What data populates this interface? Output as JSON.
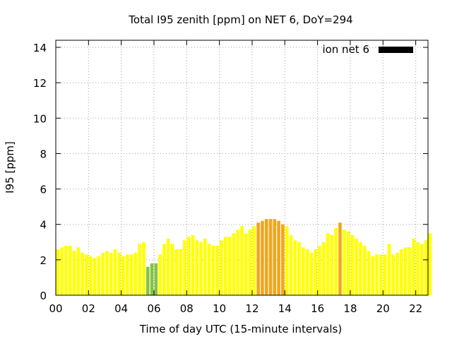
{
  "chart_data": {
    "type": "bar",
    "title": "Total I95 zenith [ppm] on NET 6, DoY=294",
    "xlabel": "Time of day UTC (15-minute intervals)",
    "ylabel": "I95 [ppm]",
    "xlim": [
      0,
      22.75
    ],
    "ylim": [
      0,
      14.4
    ],
    "grid": true,
    "legend_position": "top-right",
    "x_ticks": [
      {
        "value": 0,
        "label": "00"
      },
      {
        "value": 2,
        "label": "02"
      },
      {
        "value": 4,
        "label": "04"
      },
      {
        "value": 6,
        "label": "06"
      },
      {
        "value": 8,
        "label": "08"
      },
      {
        "value": 10,
        "label": "10"
      },
      {
        "value": 12,
        "label": "12"
      },
      {
        "value": 14,
        "label": "14"
      },
      {
        "value": 16,
        "label": "16"
      },
      {
        "value": 18,
        "label": "18"
      },
      {
        "value": 20,
        "label": "20"
      },
      {
        "value": 22,
        "label": "22"
      }
    ],
    "y_ticks": [
      {
        "value": 0,
        "label": "0"
      },
      {
        "value": 2,
        "label": "2"
      },
      {
        "value": 4,
        "label": "4"
      },
      {
        "value": 6,
        "label": "6"
      },
      {
        "value": 8,
        "label": "8"
      },
      {
        "value": 10,
        "label": "10"
      },
      {
        "value": 12,
        "label": "12"
      },
      {
        "value": 14,
        "label": "14"
      }
    ],
    "series": [
      {
        "name": "ion net 6",
        "legend_color": "#000000",
        "bar_width_hours": 0.2,
        "x_start_hour": 0.125,
        "x_step_hours": 0.25,
        "values": [
          2.6,
          2.7,
          2.8,
          2.8,
          2.5,
          2.7,
          2.4,
          2.3,
          2.2,
          2.1,
          2.2,
          2.4,
          2.5,
          2.4,
          2.6,
          2.4,
          2.2,
          2.3,
          2.3,
          2.4,
          2.9,
          3.0,
          1.6,
          1.8,
          1.8,
          2.3,
          2.9,
          3.2,
          2.9,
          2.6,
          2.6,
          3.1,
          3.3,
          3.4,
          3.1,
          3.0,
          3.2,
          2.9,
          2.8,
          2.8,
          3.1,
          3.3,
          3.3,
          3.5,
          3.7,
          3.9,
          3.5,
          3.7,
          3.9,
          4.1,
          4.2,
          4.3,
          4.3,
          4.3,
          4.2,
          4.0,
          3.9,
          3.4,
          3.1,
          3.0,
          2.7,
          2.6,
          2.4,
          2.6,
          2.8,
          3.0,
          3.5,
          3.4,
          3.8,
          4.1,
          3.7,
          3.6,
          3.4,
          3.2,
          3.0,
          2.8,
          2.5,
          2.2,
          2.3,
          2.3,
          2.3,
          2.9,
          2.3,
          2.4,
          2.6,
          2.7,
          2.7,
          3.2,
          3.0,
          2.9,
          3.1,
          3.5
        ],
        "colors": {
          "yellow": "#ffff00",
          "green": "#84c443",
          "orange": "#f4a41c"
        },
        "color_rule": "green if value < 2.0, orange if value >= 4.0, otherwise yellow"
      }
    ]
  }
}
